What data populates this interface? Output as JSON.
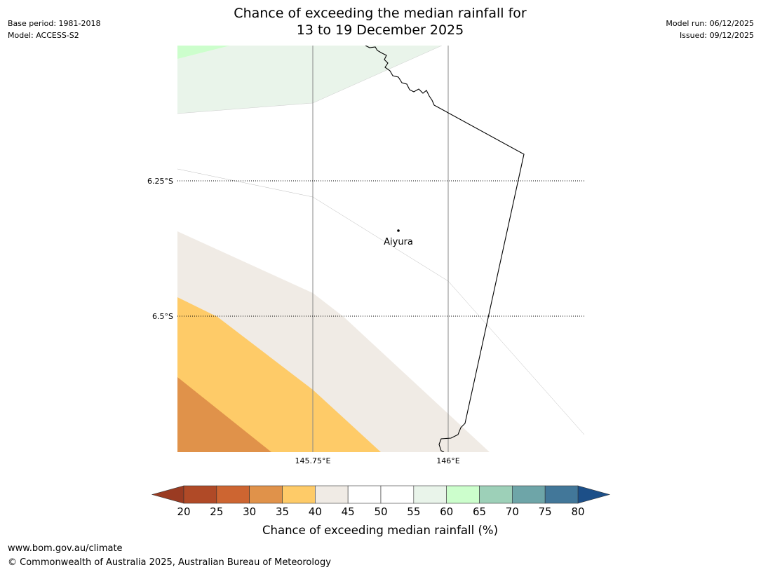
{
  "header": {
    "title_line1": "Chance of exceeding the median rainfall for",
    "title_line2": "13 to 19 December 2025",
    "base_period": "Base period: 1981-2018",
    "model": "Model: ACCESS-S2",
    "model_run": "Model run: 06/12/2025",
    "issued": "Issued: 09/12/2025"
  },
  "map": {
    "place_label": "Aiyura",
    "lat_labels": [
      "6.25°S",
      "6.5°S"
    ],
    "lon_labels": [
      "145.75°E",
      "146°E"
    ],
    "colors": {
      "c30_35": "#e0924a",
      "c35_40": "#fecb68",
      "c40_45": "#f0ebe5",
      "c55_60": "#e9f4ea",
      "c60_65": "#ccfecc",
      "gridline": "#888888",
      "border": "#000000"
    }
  },
  "colorbar": {
    "title": "Chance of exceeding median rainfall (%)",
    "ticks": [
      "20",
      "25",
      "30",
      "35",
      "40",
      "45",
      "50",
      "55",
      "60",
      "65",
      "70",
      "75",
      "80"
    ],
    "under_color": "#9a3b22",
    "over_color": "#1c4f88",
    "colors": [
      "#b04a27",
      "#cd6531",
      "#e0924a",
      "#fecb68",
      "#f0ebe5",
      "#ffffff",
      "#ffffff",
      "#e9f4ea",
      "#ccfecc",
      "#9dd0b8",
      "#6ea5a8",
      "#427799"
    ]
  },
  "footer": {
    "url": "www.bom.gov.au/climate",
    "copyright": "© Commonwealth of Australia 2025, Australian Bureau of Meteorology"
  }
}
